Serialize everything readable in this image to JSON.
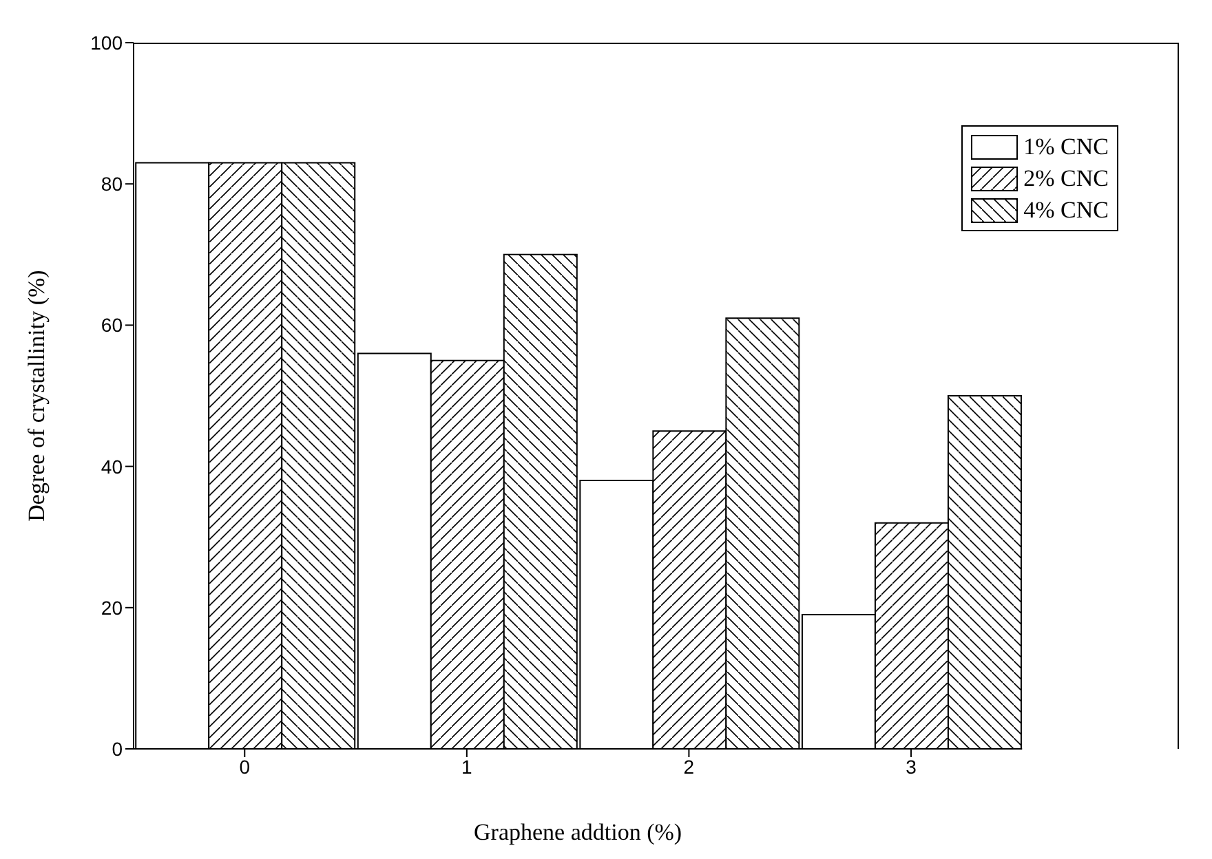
{
  "chart_data": {
    "type": "bar",
    "xlabel": "Graphene addtion (%)",
    "ylabel": "Degree of crystallinity (%)",
    "categories": [
      "0",
      "1",
      "2",
      "3"
    ],
    "series": [
      {
        "name": "1% CNC",
        "color": "#000000",
        "values": [
          83,
          56,
          38,
          19
        ]
      },
      {
        "name": "2% CNC",
        "color": "#000000",
        "values": [
          83,
          55,
          45,
          32
        ]
      },
      {
        "name": "4% CNC",
        "color": "#000000",
        "values": [
          83,
          70,
          61,
          50
        ]
      }
    ],
    "ylim": [
      0,
      100
    ],
    "yticks": [
      0,
      20,
      40,
      60,
      80,
      100
    ],
    "grid": false,
    "legend": "top right"
  }
}
